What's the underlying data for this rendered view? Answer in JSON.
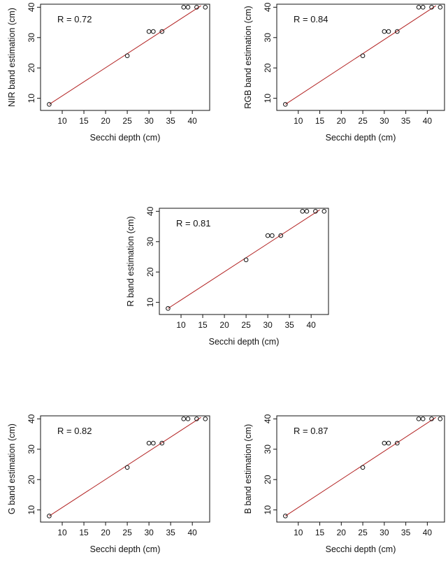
{
  "chart_data": [
    {
      "type": "scatter",
      "xlabel": "Secchi depth (cm)",
      "ylabel": "NIR band estimation (cm)",
      "annotation": "R  = 0.72",
      "xlim": [
        5,
        44
      ],
      "ylim": [
        6,
        41
      ],
      "xticks": [
        10,
        15,
        20,
        25,
        30,
        35,
        40
      ],
      "yticks": [
        10,
        20,
        30,
        40
      ],
      "points": [
        {
          "x": 7,
          "y": 8
        },
        {
          "x": 25,
          "y": 24
        },
        {
          "x": 30,
          "y": 32
        },
        {
          "x": 31,
          "y": 32
        },
        {
          "x": 33,
          "y": 32
        },
        {
          "x": 38,
          "y": 40
        },
        {
          "x": 39,
          "y": 40
        },
        {
          "x": 41,
          "y": 40
        },
        {
          "x": 43,
          "y": 40
        }
      ],
      "fit_line": {
        "x": [
          7,
          42
        ],
        "y": [
          8,
          40.5
        ]
      },
      "colors": {
        "points": "#111111",
        "fit_line": "#b22222"
      }
    },
    {
      "type": "scatter",
      "xlabel": "Secchi depth (cm)",
      "ylabel": "RGB band estimation (cm)",
      "annotation": "R  = 0.84",
      "xlim": [
        5,
        44
      ],
      "ylim": [
        6,
        41
      ],
      "xticks": [
        10,
        15,
        20,
        25,
        30,
        35,
        40
      ],
      "yticks": [
        10,
        20,
        30,
        40
      ],
      "points": [
        {
          "x": 7,
          "y": 8
        },
        {
          "x": 25,
          "y": 24
        },
        {
          "x": 30,
          "y": 32
        },
        {
          "x": 31,
          "y": 32
        },
        {
          "x": 33,
          "y": 32
        },
        {
          "x": 38,
          "y": 40
        },
        {
          "x": 39,
          "y": 40
        },
        {
          "x": 41,
          "y": 40
        },
        {
          "x": 43,
          "y": 40
        }
      ],
      "fit_line": {
        "x": [
          7,
          42
        ],
        "y": [
          8,
          40.5
        ]
      },
      "colors": {
        "points": "#111111",
        "fit_line": "#b22222"
      }
    },
    {
      "type": "scatter",
      "xlabel": "Secchi depth (cm)",
      "ylabel": "R band estimation (cm)",
      "annotation": "R  = 0.81",
      "xlim": [
        5,
        44
      ],
      "ylim": [
        6,
        41
      ],
      "xticks": [
        10,
        15,
        20,
        25,
        30,
        35,
        40
      ],
      "yticks": [
        10,
        20,
        30,
        40
      ],
      "points": [
        {
          "x": 7,
          "y": 8
        },
        {
          "x": 25,
          "y": 24
        },
        {
          "x": 30,
          "y": 32
        },
        {
          "x": 31,
          "y": 32
        },
        {
          "x": 33,
          "y": 32
        },
        {
          "x": 38,
          "y": 40
        },
        {
          "x": 39,
          "y": 40
        },
        {
          "x": 41,
          "y": 40
        },
        {
          "x": 43,
          "y": 40
        }
      ],
      "fit_line": {
        "x": [
          7,
          42
        ],
        "y": [
          8,
          40.5
        ]
      },
      "colors": {
        "points": "#111111",
        "fit_line": "#b22222"
      }
    },
    {
      "type": "scatter",
      "xlabel": "Secchi depth (cm)",
      "ylabel": "G band estimation (cm)",
      "annotation": "R  = 0.82",
      "xlim": [
        5,
        44
      ],
      "ylim": [
        6,
        41
      ],
      "xticks": [
        10,
        15,
        20,
        25,
        30,
        35,
        40
      ],
      "yticks": [
        10,
        20,
        30,
        40
      ],
      "points": [
        {
          "x": 7,
          "y": 8
        },
        {
          "x": 25,
          "y": 24
        },
        {
          "x": 30,
          "y": 32
        },
        {
          "x": 31,
          "y": 32
        },
        {
          "x": 33,
          "y": 32
        },
        {
          "x": 38,
          "y": 40
        },
        {
          "x": 39,
          "y": 40
        },
        {
          "x": 41,
          "y": 40
        },
        {
          "x": 43,
          "y": 40
        }
      ],
      "fit_line": {
        "x": [
          7,
          42
        ],
        "y": [
          8,
          40.5
        ]
      },
      "colors": {
        "points": "#111111",
        "fit_line": "#b22222"
      }
    },
    {
      "type": "scatter",
      "xlabel": "Secchi depth (cm)",
      "ylabel": "B band estimation (cm)",
      "annotation": "R  = 0.87",
      "xlim": [
        5,
        44
      ],
      "ylim": [
        6,
        41
      ],
      "xticks": [
        10,
        15,
        20,
        25,
        30,
        35,
        40
      ],
      "yticks": [
        10,
        20,
        30,
        40
      ],
      "points": [
        {
          "x": 7,
          "y": 8
        },
        {
          "x": 25,
          "y": 24
        },
        {
          "x": 30,
          "y": 32
        },
        {
          "x": 31,
          "y": 32
        },
        {
          "x": 33,
          "y": 32
        },
        {
          "x": 38,
          "y": 40
        },
        {
          "x": 39,
          "y": 40
        },
        {
          "x": 41,
          "y": 40
        },
        {
          "x": 43,
          "y": 40
        }
      ],
      "fit_line": {
        "x": [
          7,
          42
        ],
        "y": [
          8,
          40.5
        ]
      },
      "colors": {
        "points": "#111111",
        "fit_line": "#b22222"
      }
    }
  ]
}
